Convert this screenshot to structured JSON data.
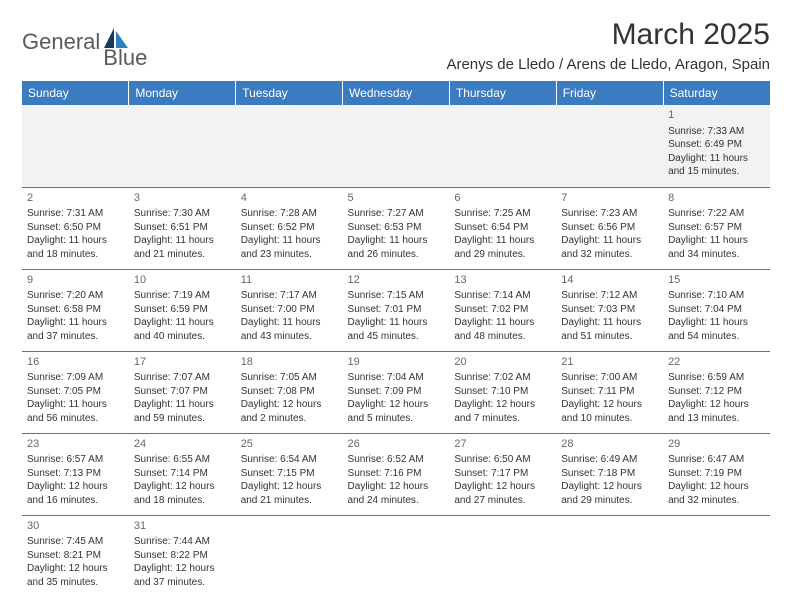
{
  "brand": {
    "general": "General",
    "blue": "Blue"
  },
  "title": "March 2025",
  "location": "Arenys de Lledo / Arens de Lledo, Aragon, Spain",
  "weekdays": [
    "Sunday",
    "Monday",
    "Tuesday",
    "Wednesday",
    "Thursday",
    "Friday",
    "Saturday"
  ],
  "colors": {
    "header_bg": "#3b7bbf",
    "header_text": "#ffffff",
    "border": "#3b7bbf",
    "text": "#333333",
    "muted": "#666666",
    "logo_text": "#5a5a5a",
    "logo_dark": "#1a3a5c",
    "logo_blue": "#2f7ec2"
  },
  "weeks": [
    [
      null,
      null,
      null,
      null,
      null,
      null,
      {
        "d": "1",
        "sr": "Sunrise: 7:33 AM",
        "ss": "Sunset: 6:49 PM",
        "dl1": "Daylight: 11 hours",
        "dl2": "and 15 minutes."
      }
    ],
    [
      {
        "d": "2",
        "sr": "Sunrise: 7:31 AM",
        "ss": "Sunset: 6:50 PM",
        "dl1": "Daylight: 11 hours",
        "dl2": "and 18 minutes."
      },
      {
        "d": "3",
        "sr": "Sunrise: 7:30 AM",
        "ss": "Sunset: 6:51 PM",
        "dl1": "Daylight: 11 hours",
        "dl2": "and 21 minutes."
      },
      {
        "d": "4",
        "sr": "Sunrise: 7:28 AM",
        "ss": "Sunset: 6:52 PM",
        "dl1": "Daylight: 11 hours",
        "dl2": "and 23 minutes."
      },
      {
        "d": "5",
        "sr": "Sunrise: 7:27 AM",
        "ss": "Sunset: 6:53 PM",
        "dl1": "Daylight: 11 hours",
        "dl2": "and 26 minutes."
      },
      {
        "d": "6",
        "sr": "Sunrise: 7:25 AM",
        "ss": "Sunset: 6:54 PM",
        "dl1": "Daylight: 11 hours",
        "dl2": "and 29 minutes."
      },
      {
        "d": "7",
        "sr": "Sunrise: 7:23 AM",
        "ss": "Sunset: 6:56 PM",
        "dl1": "Daylight: 11 hours",
        "dl2": "and 32 minutes."
      },
      {
        "d": "8",
        "sr": "Sunrise: 7:22 AM",
        "ss": "Sunset: 6:57 PM",
        "dl1": "Daylight: 11 hours",
        "dl2": "and 34 minutes."
      }
    ],
    [
      {
        "d": "9",
        "sr": "Sunrise: 7:20 AM",
        "ss": "Sunset: 6:58 PM",
        "dl1": "Daylight: 11 hours",
        "dl2": "and 37 minutes."
      },
      {
        "d": "10",
        "sr": "Sunrise: 7:19 AM",
        "ss": "Sunset: 6:59 PM",
        "dl1": "Daylight: 11 hours",
        "dl2": "and 40 minutes."
      },
      {
        "d": "11",
        "sr": "Sunrise: 7:17 AM",
        "ss": "Sunset: 7:00 PM",
        "dl1": "Daylight: 11 hours",
        "dl2": "and 43 minutes."
      },
      {
        "d": "12",
        "sr": "Sunrise: 7:15 AM",
        "ss": "Sunset: 7:01 PM",
        "dl1": "Daylight: 11 hours",
        "dl2": "and 45 minutes."
      },
      {
        "d": "13",
        "sr": "Sunrise: 7:14 AM",
        "ss": "Sunset: 7:02 PM",
        "dl1": "Daylight: 11 hours",
        "dl2": "and 48 minutes."
      },
      {
        "d": "14",
        "sr": "Sunrise: 7:12 AM",
        "ss": "Sunset: 7:03 PM",
        "dl1": "Daylight: 11 hours",
        "dl2": "and 51 minutes."
      },
      {
        "d": "15",
        "sr": "Sunrise: 7:10 AM",
        "ss": "Sunset: 7:04 PM",
        "dl1": "Daylight: 11 hours",
        "dl2": "and 54 minutes."
      }
    ],
    [
      {
        "d": "16",
        "sr": "Sunrise: 7:09 AM",
        "ss": "Sunset: 7:05 PM",
        "dl1": "Daylight: 11 hours",
        "dl2": "and 56 minutes."
      },
      {
        "d": "17",
        "sr": "Sunrise: 7:07 AM",
        "ss": "Sunset: 7:07 PM",
        "dl1": "Daylight: 11 hours",
        "dl2": "and 59 minutes."
      },
      {
        "d": "18",
        "sr": "Sunrise: 7:05 AM",
        "ss": "Sunset: 7:08 PM",
        "dl1": "Daylight: 12 hours",
        "dl2": "and 2 minutes."
      },
      {
        "d": "19",
        "sr": "Sunrise: 7:04 AM",
        "ss": "Sunset: 7:09 PM",
        "dl1": "Daylight: 12 hours",
        "dl2": "and 5 minutes."
      },
      {
        "d": "20",
        "sr": "Sunrise: 7:02 AM",
        "ss": "Sunset: 7:10 PM",
        "dl1": "Daylight: 12 hours",
        "dl2": "and 7 minutes."
      },
      {
        "d": "21",
        "sr": "Sunrise: 7:00 AM",
        "ss": "Sunset: 7:11 PM",
        "dl1": "Daylight: 12 hours",
        "dl2": "and 10 minutes."
      },
      {
        "d": "22",
        "sr": "Sunrise: 6:59 AM",
        "ss": "Sunset: 7:12 PM",
        "dl1": "Daylight: 12 hours",
        "dl2": "and 13 minutes."
      }
    ],
    [
      {
        "d": "23",
        "sr": "Sunrise: 6:57 AM",
        "ss": "Sunset: 7:13 PM",
        "dl1": "Daylight: 12 hours",
        "dl2": "and 16 minutes."
      },
      {
        "d": "24",
        "sr": "Sunrise: 6:55 AM",
        "ss": "Sunset: 7:14 PM",
        "dl1": "Daylight: 12 hours",
        "dl2": "and 18 minutes."
      },
      {
        "d": "25",
        "sr": "Sunrise: 6:54 AM",
        "ss": "Sunset: 7:15 PM",
        "dl1": "Daylight: 12 hours",
        "dl2": "and 21 minutes."
      },
      {
        "d": "26",
        "sr": "Sunrise: 6:52 AM",
        "ss": "Sunset: 7:16 PM",
        "dl1": "Daylight: 12 hours",
        "dl2": "and 24 minutes."
      },
      {
        "d": "27",
        "sr": "Sunrise: 6:50 AM",
        "ss": "Sunset: 7:17 PM",
        "dl1": "Daylight: 12 hours",
        "dl2": "and 27 minutes."
      },
      {
        "d": "28",
        "sr": "Sunrise: 6:49 AM",
        "ss": "Sunset: 7:18 PM",
        "dl1": "Daylight: 12 hours",
        "dl2": "and 29 minutes."
      },
      {
        "d": "29",
        "sr": "Sunrise: 6:47 AM",
        "ss": "Sunset: 7:19 PM",
        "dl1": "Daylight: 12 hours",
        "dl2": "and 32 minutes."
      }
    ],
    [
      {
        "d": "30",
        "sr": "Sunrise: 7:45 AM",
        "ss": "Sunset: 8:21 PM",
        "dl1": "Daylight: 12 hours",
        "dl2": "and 35 minutes."
      },
      {
        "d": "31",
        "sr": "Sunrise: 7:44 AM",
        "ss": "Sunset: 8:22 PM",
        "dl1": "Daylight: 12 hours",
        "dl2": "and 37 minutes."
      },
      null,
      null,
      null,
      null,
      null
    ]
  ]
}
